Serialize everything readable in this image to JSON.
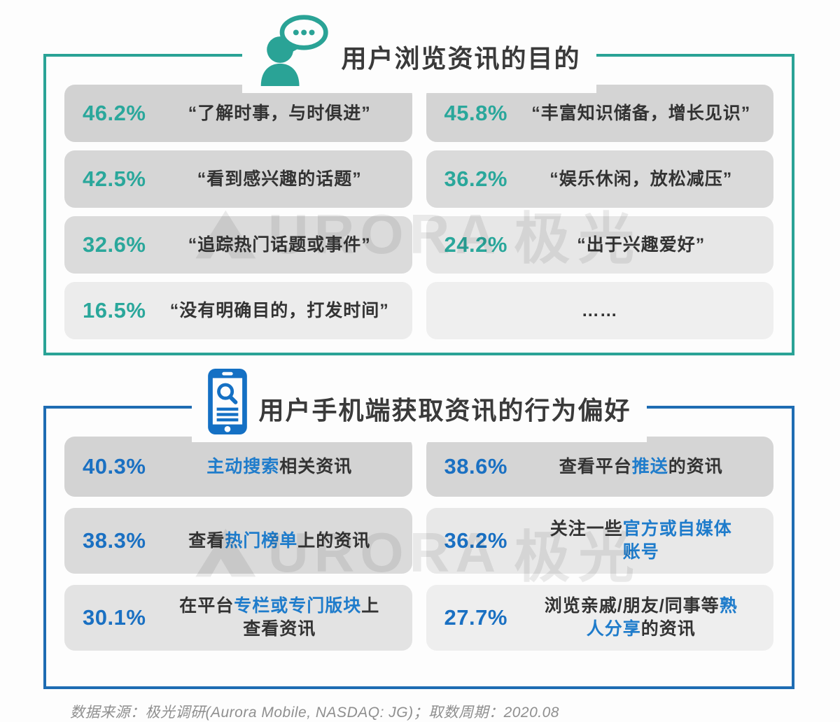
{
  "page": {
    "background": "#fdfdfd"
  },
  "watermark": {
    "brand_latin": "URORA",
    "brand_cn": "极光"
  },
  "sections": [
    {
      "title": "用户浏览资讯的目的",
      "icon": "person-chat-icon",
      "accent_border": "#2aa396",
      "accent_text": "#2aa79b",
      "highlight": "#2aa79b",
      "rows": [
        {
          "pct": "46.2%",
          "bg": "#d2d2d2",
          "segments": [
            {
              "t": "“了解时事，与时俱进”"
            }
          ]
        },
        {
          "pct": "45.8%",
          "bg": "#d4d4d4",
          "segments": [
            {
              "t": "“丰富知识储备，增长见识”"
            }
          ]
        },
        {
          "pct": "42.5%",
          "bg": "#d6d6d6",
          "segments": [
            {
              "t": "“看到感兴趣的话题”"
            }
          ]
        },
        {
          "pct": "36.2%",
          "bg": "#dadada",
          "segments": [
            {
              "t": "“娱乐休闲，放松减压”"
            }
          ]
        },
        {
          "pct": "32.6%",
          "bg": "#dbdbdb",
          "segments": [
            {
              "t": "“追踪热门话题或事件”"
            }
          ]
        },
        {
          "pct": "24.2%",
          "bg": "#e7e7e7",
          "segments": [
            {
              "t": "“出于兴趣爱好”"
            }
          ]
        },
        {
          "pct": "16.5%",
          "bg": "#ececec",
          "segments": [
            {
              "t": "“没有明确目的，打发时间”"
            }
          ]
        },
        {
          "pct": "",
          "bg": "#efefef",
          "segments": [
            {
              "t": "……"
            }
          ]
        }
      ]
    },
    {
      "title": "用户手机端获取资讯的行为偏好",
      "icon": "phone-search-icon",
      "accent_border": "#1e6cb3",
      "accent_text": "#1a70c2",
      "highlight": "#1f7ccb",
      "rows": [
        {
          "pct": "40.3%",
          "bg": "#d3d3d3",
          "segments": [
            {
              "t": "主动搜索",
              "hl": true
            },
            {
              "t": "相关资讯"
            }
          ]
        },
        {
          "pct": "38.6%",
          "bg": "#d5d5d5",
          "segments": [
            {
              "t": "查看平台"
            },
            {
              "t": "推送",
              "hl": true
            },
            {
              "t": "的资讯"
            }
          ]
        },
        {
          "pct": "38.3%",
          "bg": "#dadada",
          "segments": [
            {
              "t": "查看"
            },
            {
              "t": "热门榜单",
              "hl": true
            },
            {
              "t": "上的资讯"
            }
          ]
        },
        {
          "pct": "36.2%",
          "bg": "#e8e8e8",
          "segments": [
            {
              "t": "关注一些"
            },
            {
              "t": "官方或自媒体",
              "hl": true
            },
            {
              "br": true
            },
            {
              "t": "账号",
              "hl": true
            }
          ]
        },
        {
          "pct": "30.1%",
          "bg": "#e3e3e3",
          "segments": [
            {
              "t": "在平台"
            },
            {
              "t": "专栏或专门版块",
              "hl": true
            },
            {
              "t": "上"
            },
            {
              "br": true
            },
            {
              "t": "查看资讯"
            }
          ]
        },
        {
          "pct": "27.7%",
          "bg": "#eeeeee",
          "segments": [
            {
              "t": "浏览亲戚/朋友/同事等"
            },
            {
              "t": "熟",
              "hl": true
            },
            {
              "br": true
            },
            {
              "t": "人分享",
              "hl": true
            },
            {
              "t": "的资讯"
            }
          ]
        }
      ]
    }
  ],
  "footer": {
    "text": "数据来源：极光调研(Aurora Mobile, NASDAQ: JG)；取数周期：2020.08"
  },
  "chart_data": [
    {
      "type": "bar",
      "title": "用户浏览资讯的目的",
      "categories": [
        "了解时事，与时俱进",
        "丰富知识储备，增长见识",
        "看到感兴趣的话题",
        "娱乐休闲，放松减压",
        "追踪热门话题或事件",
        "出于兴趣爱好",
        "没有明确目的，打发时间"
      ],
      "values": [
        46.2,
        45.8,
        42.5,
        36.2,
        32.6,
        24.2,
        16.5
      ],
      "unit": "%"
    },
    {
      "type": "bar",
      "title": "用户手机端获取资讯的行为偏好",
      "categories": [
        "主动搜索相关资讯",
        "查看平台推送的资讯",
        "查看热门榜单上的资讯",
        "关注一些官方或自媒体账号",
        "在平台专栏或专门版块上查看资讯",
        "浏览亲戚/朋友/同事等熟人分享的资讯"
      ],
      "values": [
        40.3,
        38.6,
        38.3,
        36.2,
        30.1,
        27.7
      ],
      "unit": "%"
    }
  ]
}
